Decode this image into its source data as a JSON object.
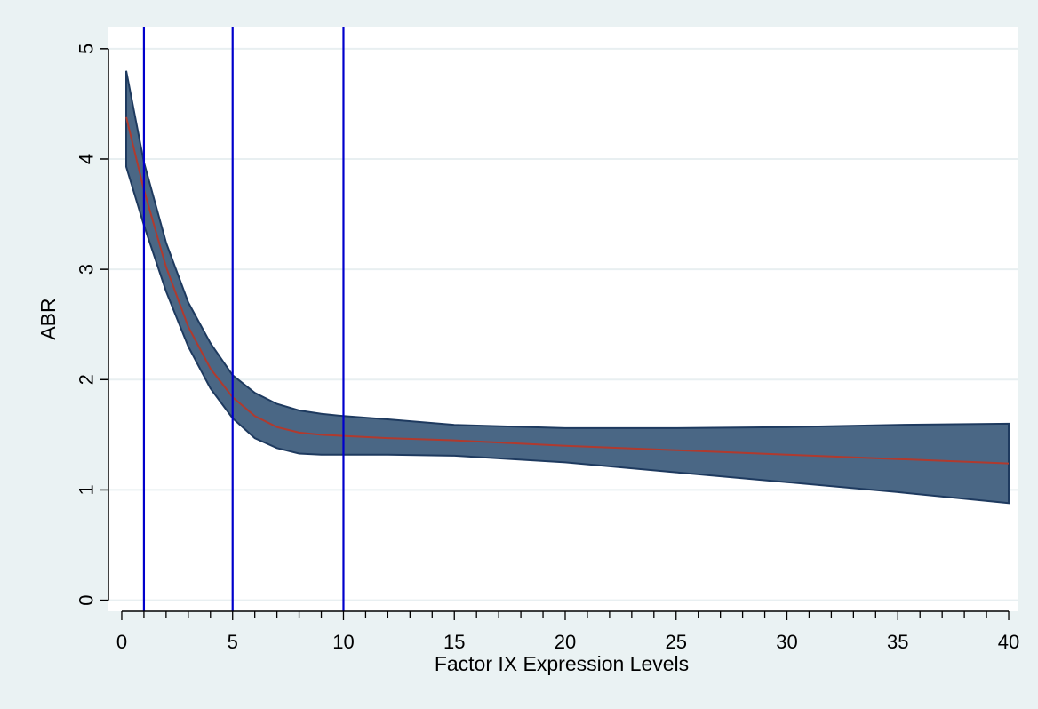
{
  "chart_data": {
    "type": "area",
    "title": "",
    "xlabel": "Factor IX Expression Levels",
    "ylabel": "ABR",
    "xlim": [
      -0.6,
      40.4
    ],
    "ylim": [
      -0.1,
      5.2
    ],
    "x_ticks": [
      "0",
      "5",
      "10",
      "15",
      "20",
      "25",
      "30",
      "35",
      "40"
    ],
    "x_tick_values": [
      0,
      5,
      10,
      15,
      20,
      25,
      30,
      35,
      40
    ],
    "x_minor_tick_step": 1,
    "y_ticks": [
      "0",
      "1",
      "2",
      "3",
      "4",
      "5"
    ],
    "y_tick_values": [
      0,
      1,
      2,
      3,
      4,
      5
    ],
    "grid": true,
    "reference_lines_x": [
      1,
      5,
      10
    ],
    "series": [
      {
        "name": "",
        "kind": "confidence-band",
        "x": [
          0.2,
          1,
          2,
          3,
          4,
          5,
          6,
          7,
          8,
          9,
          10,
          12,
          15,
          20,
          25,
          30,
          35,
          40
        ],
        "lower": [
          3.93,
          3.4,
          2.8,
          2.3,
          1.92,
          1.65,
          1.47,
          1.38,
          1.33,
          1.32,
          1.32,
          1.32,
          1.31,
          1.25,
          1.16,
          1.07,
          0.98,
          0.88
        ],
        "upper": [
          4.8,
          3.97,
          3.24,
          2.7,
          2.33,
          2.04,
          1.88,
          1.78,
          1.72,
          1.69,
          1.67,
          1.64,
          1.59,
          1.56,
          1.56,
          1.57,
          1.59,
          1.6
        ]
      },
      {
        "name": "",
        "kind": "line",
        "x": [
          0.2,
          1,
          2,
          3,
          4,
          5,
          6,
          7,
          8,
          9,
          10,
          12,
          15,
          20,
          25,
          30,
          35,
          40
        ],
        "values": [
          4.38,
          3.72,
          3.02,
          2.48,
          2.1,
          1.84,
          1.67,
          1.57,
          1.52,
          1.5,
          1.49,
          1.47,
          1.45,
          1.4,
          1.36,
          1.32,
          1.28,
          1.24
        ]
      }
    ]
  },
  "colors": {
    "background": "#eaf2f3",
    "plot_area": "#ffffff",
    "band_fill": "#4a6785",
    "band_stroke": "#1e3a5f",
    "line": "#b03a2e",
    "reference_line": "#0000cc",
    "grid": "#e8eff1"
  }
}
